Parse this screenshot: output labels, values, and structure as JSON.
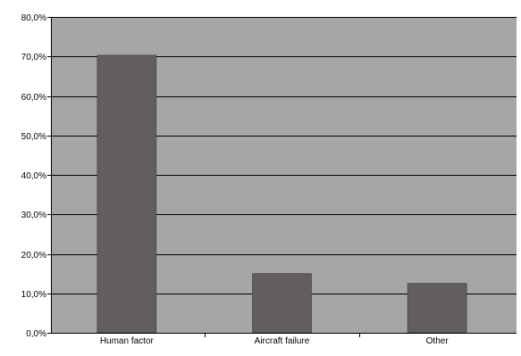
{
  "chart_data": {
    "type": "bar",
    "title": "",
    "xlabel": "",
    "ylabel": "",
    "categories": [
      "Human factor",
      "Aircraft failure",
      "Other"
    ],
    "values": [
      70.3,
      15.0,
      12.5
    ],
    "ylim": [
      0,
      80
    ],
    "yticks": [
      "0,0%",
      "10,0%",
      "20,0%",
      "30,0%",
      "40,0%",
      "50,0%",
      "60,0%",
      "70,0%",
      "80,0%"
    ],
    "grid": true,
    "legend": "none",
    "colors": {
      "bar": "#625e5d",
      "bar_edge": "#3c3a39",
      "plot_background": "#a6a6a6",
      "gridline": "#000000",
      "axis": "#000000",
      "page_background": "#ffffff"
    }
  }
}
